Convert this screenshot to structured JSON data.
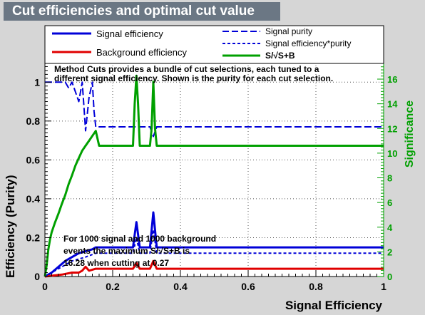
{
  "title": "Cut efficiencies and optimal cut value",
  "colors": {
    "signal": "#0000d8",
    "background": "#e00000",
    "significance": "#00a000",
    "axis_right": "#00a000",
    "frame": "#000000",
    "title_bg": "#6b7784"
  },
  "legend": {
    "left": [
      "Signal efficiency",
      "Background efficiency"
    ],
    "right": [
      "Signal purity",
      "Signal efficiency*purity",
      "S/√S+B"
    ]
  },
  "description": [
    "Method Cuts provides a bundle of cut selections, each tuned to a",
    "different signal efficiency. Shown is the purity for each cut selection."
  ],
  "annotation": [
    "For 1000 signal and 1000 background",
    "events the maximum S/√S+B is",
    "16.28 when cutting at  0.27"
  ],
  "chart_data": {
    "type": "line",
    "xlabel": "Signal Efficiency",
    "ylabel": "Efficiency (Purity)",
    "y2label": "Significance",
    "xlim": [
      0,
      1
    ],
    "ylim": [
      0,
      1.1
    ],
    "y2lim": [
      0,
      17.33
    ],
    "x_ticks": [
      "0",
      "0.2",
      "0.4",
      "0.6",
      "0.8",
      "1"
    ],
    "y_ticks": [
      "0",
      "0.2",
      "0.4",
      "0.6",
      "0.8",
      "1"
    ],
    "y2_ticks": [
      "0",
      "2",
      "4",
      "6",
      "8",
      "10",
      "12",
      "14",
      "16"
    ],
    "grid": true,
    "series": [
      {
        "name": "Signal efficiency",
        "axis": "left",
        "style": "solid",
        "x": [
          0,
          0.02,
          0.04,
          0.06,
          0.08,
          0.1,
          0.12,
          0.14,
          0.15,
          0.16,
          0.26,
          0.27,
          0.28,
          0.31,
          0.32,
          0.33,
          1.0
        ],
        "y": [
          0,
          0.02,
          0.05,
          0.08,
          0.1,
          0.12,
          0.13,
          0.14,
          0.15,
          0.15,
          0.15,
          0.28,
          0.15,
          0.15,
          0.33,
          0.15,
          0.15
        ]
      },
      {
        "name": "Background efficiency",
        "axis": "left",
        "style": "solid",
        "x": [
          0,
          0.05,
          0.08,
          0.1,
          0.11,
          0.12,
          0.13,
          0.15,
          0.16,
          0.26,
          0.27,
          0.28,
          0.31,
          0.32,
          0.33,
          1.0
        ],
        "y": [
          0,
          0.01,
          0.02,
          0.02,
          0.03,
          0.05,
          0.03,
          0.04,
          0.04,
          0.04,
          0.07,
          0.04,
          0.04,
          0.08,
          0.04,
          0.04
        ]
      },
      {
        "name": "Signal purity",
        "axis": "left",
        "style": "dashed",
        "x": [
          0,
          0.06,
          0.07,
          0.08,
          0.09,
          0.1,
          0.11,
          0.115,
          0.12,
          0.13,
          0.14,
          0.145,
          0.15,
          0.16,
          0.31,
          0.32,
          0.33,
          1.0
        ],
        "y": [
          1.0,
          1.0,
          0.97,
          1.0,
          0.95,
          0.9,
          1.0,
          0.88,
          0.75,
          0.92,
          1.0,
          0.85,
          0.77,
          0.77,
          0.77,
          0.72,
          0.77,
          0.77
        ]
      },
      {
        "name": "Signal efficiency*purity",
        "axis": "left",
        "style": "dotted",
        "x": [
          0,
          0.04,
          0.08,
          0.12,
          0.15,
          0.16,
          0.26,
          0.27,
          0.28,
          0.31,
          0.32,
          0.33,
          1.0
        ],
        "y": [
          0,
          0.04,
          0.08,
          0.1,
          0.12,
          0.12,
          0.12,
          0.2,
          0.12,
          0.12,
          0.24,
          0.12,
          0.12
        ]
      },
      {
        "name": "S/√S+B",
        "axis": "right",
        "style": "solid",
        "x": [
          0,
          0.005,
          0.01,
          0.015,
          0.02,
          0.03,
          0.04,
          0.05,
          0.06,
          0.07,
          0.08,
          0.09,
          0.1,
          0.11,
          0.12,
          0.13,
          0.14,
          0.15,
          0.16,
          0.25,
          0.26,
          0.265,
          0.27,
          0.275,
          0.28,
          0.31,
          0.315,
          0.32,
          0.325,
          0.33,
          1.0
        ],
        "y": [
          0,
          0.9,
          2.2,
          3.0,
          3.6,
          4.4,
          5.1,
          5.9,
          6.6,
          7.5,
          8.2,
          9.0,
          9.6,
          10.2,
          10.6,
          11.0,
          11.4,
          11.8,
          10.6,
          10.6,
          10.6,
          14.0,
          16.28,
          14.0,
          10.6,
          10.6,
          12.0,
          15.8,
          12.0,
          10.6,
          10.6
        ]
      }
    ]
  }
}
